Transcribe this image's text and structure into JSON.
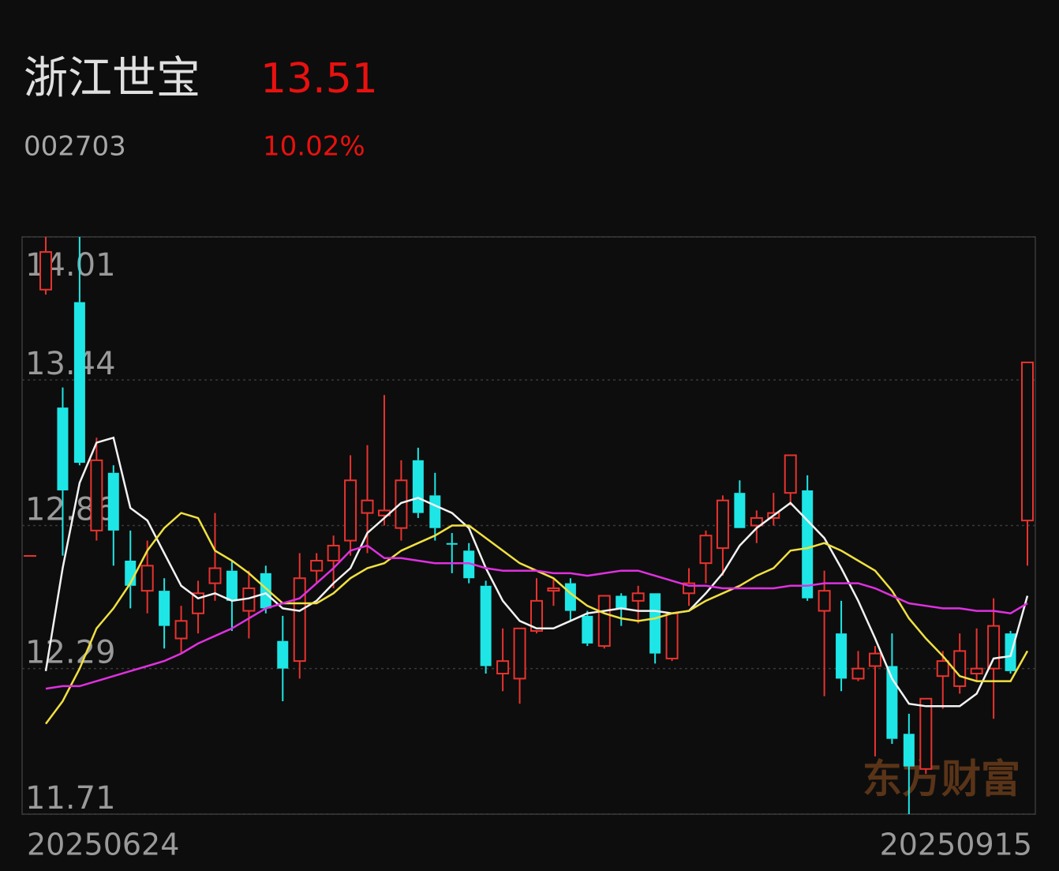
{
  "header": {
    "name": "浙江世宝",
    "price": "13.51",
    "code": "002703",
    "change": "10.02%"
  },
  "chart_data": {
    "type": "candlestick",
    "watermark": "东方财富",
    "categories": [
      "20250624",
      null,
      null,
      null,
      null,
      null,
      null,
      null,
      null,
      null,
      null,
      null,
      null,
      null,
      null,
      null,
      null,
      null,
      null,
      null,
      null,
      null,
      null,
      null,
      null,
      null,
      null,
      null,
      null,
      null,
      null,
      null,
      null,
      null,
      null,
      null,
      null,
      null,
      null,
      null,
      null,
      null,
      null,
      null,
      null,
      null,
      null,
      null,
      null,
      null,
      null,
      null,
      null,
      null,
      null,
      null,
      null,
      null,
      "20250915"
    ],
    "open": [
      13.8,
      13.33,
      13.75,
      12.84,
      13.07,
      12.72,
      12.6,
      12.6,
      12.41,
      12.51,
      12.63,
      12.68,
      12.52,
      12.67,
      12.4,
      12.32,
      12.68,
      12.72,
      12.8,
      12.91,
      12.9,
      12.85,
      13.12,
      12.98,
      12.79,
      12.76,
      12.62,
      12.27,
      12.25,
      12.44,
      12.6,
      12.63,
      12.5,
      12.38,
      12.58,
      12.56,
      12.59,
      12.33,
      12.59,
      12.71,
      12.77,
      12.99,
      12.86,
      12.89,
      12.99,
      13.0,
      12.52,
      12.43,
      12.25,
      12.3,
      12.3,
      12.03,
      11.89,
      12.26,
      12.22,
      12.27,
      12.29,
      12.43,
      12.88
    ],
    "high": [
      14.01,
      13.41,
      14.01,
      13.21,
      13.1,
      12.84,
      12.8,
      12.65,
      12.54,
      12.64,
      12.91,
      12.72,
      12.68,
      12.7,
      12.5,
      12.75,
      12.75,
      12.82,
      13.14,
      13.18,
      13.38,
      13.12,
      13.17,
      13.07,
      12.83,
      12.79,
      12.64,
      12.45,
      12.45,
      12.65,
      12.65,
      12.65,
      12.52,
      12.58,
      12.59,
      12.62,
      12.59,
      12.51,
      12.69,
      12.84,
      12.98,
      13.04,
      12.92,
      12.99,
      13.14,
      13.06,
      12.68,
      12.56,
      12.36,
      12.38,
      12.43,
      12.11,
      12.17,
      12.36,
      12.43,
      12.45,
      12.57,
      12.44,
      13.51
    ],
    "low": [
      13.78,
      12.74,
      13.1,
      12.8,
      12.7,
      12.53,
      12.51,
      12.37,
      12.35,
      12.43,
      12.56,
      12.44,
      12.41,
      12.51,
      12.16,
      12.25,
      12.63,
      12.61,
      12.74,
      12.75,
      12.86,
      12.8,
      12.89,
      12.8,
      12.67,
      12.63,
      12.27,
      12.2,
      12.15,
      12.43,
      12.54,
      12.48,
      12.38,
      12.37,
      12.46,
      12.47,
      12.31,
      12.32,
      12.54,
      12.63,
      12.66,
      12.85,
      12.79,
      12.86,
      12.94,
      12.56,
      12.18,
      12.2,
      12.24,
      11.94,
      11.99,
      11.71,
      11.87,
      12.13,
      12.19,
      12.24,
      12.09,
      12.27,
      12.7
    ],
    "close": [
      13.95,
      13.0,
      13.11,
      13.12,
      12.84,
      12.62,
      12.7,
      12.46,
      12.48,
      12.59,
      12.69,
      12.56,
      12.61,
      12.53,
      12.29,
      12.65,
      12.72,
      12.78,
      13.04,
      12.96,
      12.92,
      13.04,
      12.91,
      12.85,
      12.79,
      12.65,
      12.3,
      12.32,
      12.45,
      12.56,
      12.61,
      12.52,
      12.39,
      12.58,
      12.53,
      12.59,
      12.35,
      12.51,
      12.63,
      12.82,
      12.96,
      12.85,
      12.89,
      12.91,
      13.14,
      12.57,
      12.6,
      12.25,
      12.29,
      12.35,
      12.01,
      11.9,
      12.17,
      12.32,
      12.36,
      12.29,
      12.46,
      12.28,
      13.51
    ],
    "up_color": "#e8332f",
    "down_color": "#1ee6e6",
    "overlays": [
      {
        "color": "#f2f2f2",
        "values": [
          12.28,
          12.69,
          13.03,
          13.19,
          13.21,
          12.93,
          12.88,
          12.75,
          12.62,
          12.57,
          12.59,
          12.56,
          12.57,
          12.59,
          12.53,
          12.52,
          12.56,
          12.63,
          12.69,
          12.83,
          12.89,
          12.95,
          12.97,
          12.94,
          12.91,
          12.85,
          12.69,
          12.56,
          12.48,
          12.45,
          12.45,
          12.48,
          12.51,
          12.52,
          12.53,
          12.52,
          12.52,
          12.51,
          12.52,
          12.59,
          12.67,
          12.78,
          12.85,
          12.9,
          12.95,
          12.88,
          12.81,
          12.69,
          12.56,
          12.41,
          12.25,
          12.15,
          12.14,
          12.14,
          12.14,
          12.19,
          12.33,
          12.34,
          12.58
        ]
      },
      {
        "color": "#f0e040",
        "values": [
          12.07,
          12.16,
          12.29,
          12.45,
          12.53,
          12.63,
          12.76,
          12.85,
          12.91,
          12.89,
          12.76,
          12.72,
          12.67,
          12.61,
          12.55,
          12.55,
          12.55,
          12.59,
          12.65,
          12.69,
          12.71,
          12.76,
          12.79,
          12.82,
          12.86,
          12.86,
          12.81,
          12.76,
          12.71,
          12.68,
          12.65,
          12.59,
          12.54,
          12.51,
          12.49,
          12.48,
          12.49,
          12.51,
          12.52,
          12.56,
          12.59,
          12.62,
          12.66,
          12.69,
          12.76,
          12.77,
          12.79,
          12.76,
          12.72,
          12.68,
          12.6,
          12.49,
          12.41,
          12.34,
          12.26,
          12.24,
          12.24,
          12.24,
          12.36
        ]
      },
      {
        "color": "#e030e0",
        "values": [
          12.21,
          12.22,
          12.22,
          12.24,
          12.26,
          12.28,
          12.3,
          12.32,
          12.35,
          12.39,
          12.42,
          12.45,
          12.49,
          12.53,
          12.55,
          12.57,
          12.63,
          12.69,
          12.76,
          12.78,
          12.73,
          12.73,
          12.72,
          12.71,
          12.71,
          12.71,
          12.69,
          12.68,
          12.68,
          12.68,
          12.67,
          12.67,
          12.66,
          12.67,
          12.68,
          12.68,
          12.66,
          12.64,
          12.62,
          12.62,
          12.61,
          12.61,
          12.61,
          12.61,
          12.62,
          12.62,
          12.63,
          12.63,
          12.63,
          12.61,
          12.58,
          12.55,
          12.54,
          12.53,
          12.53,
          12.52,
          12.52,
          12.51,
          12.55
        ]
      }
    ],
    "ylim": [
      11.71,
      14.01
    ],
    "yticks": [
      11.71,
      12.29,
      12.86,
      13.44,
      14.01
    ],
    "grid": true
  }
}
